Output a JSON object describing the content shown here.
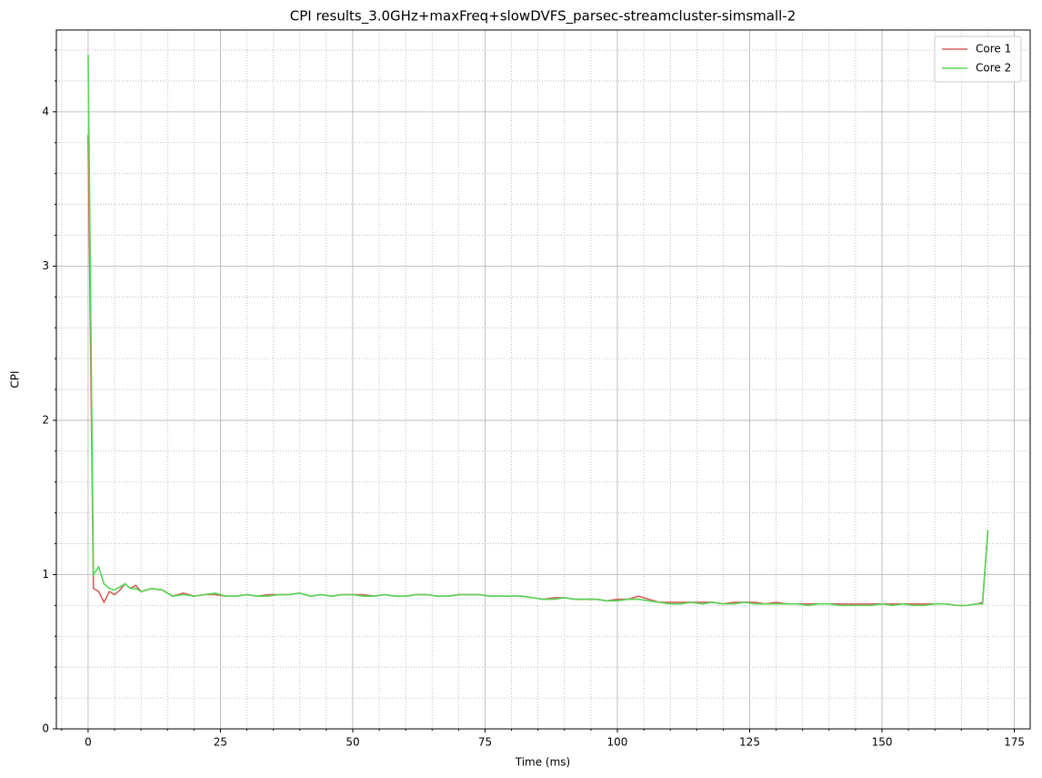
{
  "chart_data": {
    "type": "line",
    "title": "CPI results_3.0GHz+maxFreq+slowDVFS_parsec-streamcluster-simsmall-2",
    "x_label": "Time (ms)",
    "y_label": "CPI",
    "x": [
      0,
      1,
      2,
      3,
      4,
      5,
      6,
      7,
      8,
      9,
      10,
      12,
      14,
      16,
      18,
      20,
      22,
      24,
      26,
      28,
      30,
      32,
      34,
      36,
      38,
      40,
      42,
      44,
      46,
      48,
      50,
      52,
      54,
      56,
      58,
      60,
      62,
      64,
      66,
      68,
      70,
      72,
      74,
      76,
      78,
      80,
      82,
      84,
      86,
      88,
      90,
      92,
      94,
      96,
      98,
      100,
      102,
      104,
      106,
      108,
      110,
      112,
      114,
      116,
      118,
      120,
      122,
      124,
      126,
      128,
      130,
      132,
      134,
      136,
      138,
      140,
      142,
      144,
      146,
      148,
      150,
      152,
      154,
      156,
      158,
      160,
      162,
      164,
      166,
      168,
      169,
      170
    ],
    "series": [
      {
        "name": "Core 1",
        "color": "#d65f5f",
        "values": [
          3.85,
          0.91,
          0.89,
          0.82,
          0.89,
          0.87,
          0.9,
          0.94,
          0.91,
          0.93,
          0.89,
          0.91,
          0.9,
          0.86,
          0.88,
          0.86,
          0.87,
          0.87,
          0.86,
          0.86,
          0.87,
          0.86,
          0.87,
          0.87,
          0.87,
          0.88,
          0.86,
          0.87,
          0.86,
          0.87,
          0.87,
          0.87,
          0.86,
          0.87,
          0.86,
          0.86,
          0.87,
          0.87,
          0.86,
          0.86,
          0.87,
          0.87,
          0.87,
          0.86,
          0.86,
          0.86,
          0.86,
          0.85,
          0.84,
          0.85,
          0.85,
          0.84,
          0.84,
          0.84,
          0.83,
          0.84,
          0.84,
          0.86,
          0.84,
          0.82,
          0.82,
          0.82,
          0.82,
          0.82,
          0.82,
          0.81,
          0.82,
          0.82,
          0.82,
          0.81,
          0.82,
          0.81,
          0.81,
          0.81,
          0.81,
          0.81,
          0.81,
          0.81,
          0.81,
          0.81,
          0.81,
          0.81,
          0.81,
          0.81,
          0.81,
          0.81,
          0.81,
          0.8,
          0.8,
          0.81,
          0.82,
          1.28
        ]
      },
      {
        "name": "Core 2",
        "color": "#55d655",
        "values": [
          4.37,
          1.0,
          1.05,
          0.94,
          0.91,
          0.9,
          0.92,
          0.94,
          0.91,
          0.91,
          0.89,
          0.91,
          0.9,
          0.86,
          0.87,
          0.86,
          0.87,
          0.88,
          0.86,
          0.86,
          0.87,
          0.86,
          0.86,
          0.87,
          0.87,
          0.88,
          0.86,
          0.87,
          0.86,
          0.87,
          0.87,
          0.86,
          0.86,
          0.87,
          0.86,
          0.86,
          0.87,
          0.87,
          0.86,
          0.86,
          0.87,
          0.87,
          0.87,
          0.86,
          0.86,
          0.86,
          0.86,
          0.85,
          0.84,
          0.84,
          0.85,
          0.84,
          0.84,
          0.84,
          0.83,
          0.83,
          0.84,
          0.84,
          0.83,
          0.82,
          0.81,
          0.81,
          0.82,
          0.81,
          0.82,
          0.81,
          0.81,
          0.82,
          0.81,
          0.81,
          0.81,
          0.81,
          0.81,
          0.8,
          0.81,
          0.81,
          0.8,
          0.8,
          0.8,
          0.8,
          0.81,
          0.8,
          0.81,
          0.8,
          0.8,
          0.81,
          0.81,
          0.8,
          0.8,
          0.81,
          0.81,
          1.29
        ]
      }
    ],
    "xlim": [
      -6,
      178
    ],
    "ylim": [
      0,
      4.53
    ],
    "xticks": [
      0,
      25,
      50,
      75,
      100,
      125,
      150,
      175
    ],
    "yticks": [
      0,
      1,
      2,
      3,
      4
    ],
    "xminorticks": [
      -5,
      5,
      10,
      15,
      20,
      30,
      35,
      40,
      45,
      55,
      60,
      65,
      70,
      80,
      85,
      90,
      95,
      105,
      110,
      115,
      120,
      130,
      135,
      140,
      145,
      155,
      160,
      165,
      170
    ],
    "yminorticks": [
      0.2,
      0.4,
      0.6,
      0.8,
      1.2,
      1.4,
      1.6,
      1.8,
      2.2,
      2.4,
      2.6,
      2.8,
      3.2,
      3.4,
      3.6,
      3.8,
      4.2,
      4.4
    ],
    "grid": true,
    "legend": "upper right"
  }
}
